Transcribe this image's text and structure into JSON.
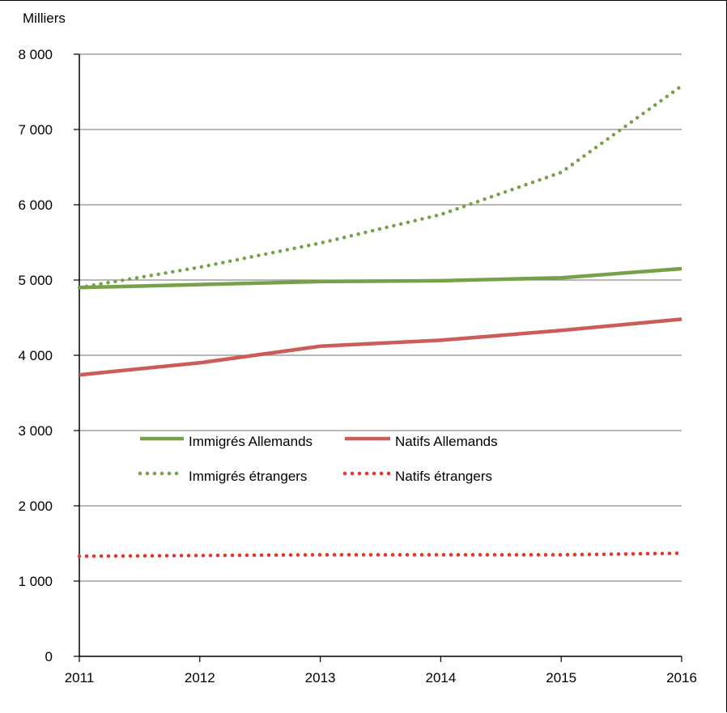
{
  "chart_data": {
    "type": "line",
    "unit_label": "Milliers",
    "x": [
      "2011",
      "2012",
      "2013",
      "2014",
      "2015",
      "2016"
    ],
    "ylim": [
      0,
      8000
    ],
    "y_ticks": [
      0,
      1000,
      2000,
      3000,
      4000,
      5000,
      6000,
      7000,
      8000
    ],
    "y_tick_labels": [
      "0",
      "1 000",
      "2 000",
      "3 000",
      "4 000",
      "5 000",
      "6 000",
      "7 000",
      "8 000"
    ],
    "grid": true,
    "legend_position": "center-left",
    "series": [
      {
        "name": "Immigrés Allemands",
        "color": "#77a04a",
        "style": "solid",
        "values": [
          4900,
          4940,
          4980,
          4990,
          5030,
          5150
        ]
      },
      {
        "name": "Natifs Allemands",
        "color": "#cc5c58",
        "style": "solid",
        "values": [
          3740,
          3900,
          4120,
          4200,
          4330,
          4480
        ]
      },
      {
        "name": "Immigrés étrangers",
        "color": "#77a04a",
        "style": "dotted",
        "values": [
          4900,
          5170,
          5490,
          5870,
          6430,
          7580
        ]
      },
      {
        "name": "Natifs étrangers",
        "color": "#e8322a",
        "style": "dotted",
        "values": [
          1330,
          1340,
          1350,
          1350,
          1350,
          1370
        ]
      }
    ]
  }
}
